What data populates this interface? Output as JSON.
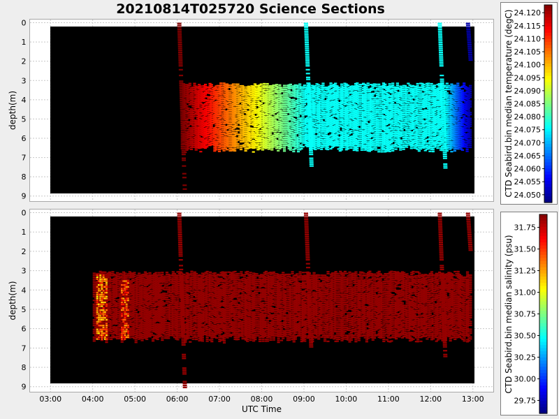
{
  "title": "20210814T025720 Science Sections",
  "colors": {
    "background": "#eeeeee",
    "plot_background": "#000000",
    "panel_background": "#ffffff",
    "grid": "#c8c8c8"
  },
  "chart_data": [
    {
      "type": "heatmap",
      "title": "20210814T025720 Science Sections",
      "xlabel": "",
      "ylabel": "depth(m)",
      "x_ticks": [
        "03:00",
        "04:00",
        "05:00",
        "06:00",
        "07:00",
        "08:00",
        "09:00",
        "10:00",
        "11:00",
        "12:00",
        "13:00"
      ],
      "y_ticks": [
        "0",
        "1",
        "2",
        "3",
        "4",
        "5",
        "6",
        "7",
        "8",
        "9"
      ],
      "xlim": [
        "02:30",
        "13:30"
      ],
      "ylim": [
        9.3,
        -0.2
      ],
      "grid": true,
      "colorbar": {
        "label": "CTD Seabird.bin median temperature (degC)",
        "ticks": [
          "24.120",
          "24.115",
          "24.110",
          "24.105",
          "24.100",
          "24.095",
          "24.090",
          "24.085",
          "24.080",
          "24.075",
          "24.070",
          "24.065",
          "24.060",
          "24.055",
          "24.050"
        ],
        "range": [
          24.047,
          24.123
        ],
        "colormap": "jet"
      },
      "features": [
        {
          "kind": "layer",
          "start": "06:05",
          "end": "12:55",
          "depth": [
            3.1,
            6.7
          ],
          "values": "24.123 at 06:05 decreasing to 24.076 by 09:00, constant 24.076 to 12:20, then 24.050 by 12:55"
        },
        {
          "kind": "descent",
          "start": "06:00",
          "end": "06:10",
          "depth": [
            0,
            8.8
          ],
          "value": 24.123
        },
        {
          "kind": "descent",
          "start": "09:00",
          "end": "09:10",
          "depth": [
            0,
            7.5
          ],
          "value": 24.076
        },
        {
          "kind": "descent",
          "start": "12:10",
          "end": "12:20",
          "depth": [
            0,
            7.5
          ],
          "value": 24.076
        },
        {
          "kind": "descent",
          "start": "12:50",
          "end": "12:55",
          "depth": [
            0,
            2.0
          ],
          "value": 24.05
        }
      ]
    },
    {
      "type": "heatmap",
      "title": "",
      "xlabel": "UTC Time",
      "ylabel": "depth(m)",
      "x_ticks": [
        "03:00",
        "04:00",
        "05:00",
        "06:00",
        "07:00",
        "08:00",
        "09:00",
        "10:00",
        "11:00",
        "12:00",
        "13:00"
      ],
      "y_ticks": [
        "0",
        "1",
        "2",
        "3",
        "4",
        "5",
        "6",
        "7",
        "8",
        "9"
      ],
      "xlim": [
        "02:30",
        "13:30"
      ],
      "ylim": [
        9.3,
        -0.2
      ],
      "grid": true,
      "colorbar": {
        "label": "CTD Seabird.bin median salinity (psu)",
        "ticks": [
          "31.75",
          "31.50",
          "31.25",
          "31.00",
          "30.75",
          "30.50",
          "30.25",
          "30.00",
          "29.75"
        ],
        "range": [
          29.6,
          31.9
        ],
        "colormap": "jet"
      },
      "features": [
        {
          "kind": "layer",
          "start": "04:00",
          "end": "12:55",
          "depth": [
            3.0,
            6.7
          ],
          "value": 31.85
        },
        {
          "kind": "patch",
          "start": "04:05",
          "end": "04:20",
          "depth": [
            3.2,
            6.5
          ],
          "value": 31.3
        },
        {
          "kind": "patch",
          "start": "04:40",
          "end": "04:50",
          "depth": [
            3.5,
            6.5
          ],
          "value": 31.45
        },
        {
          "kind": "descent",
          "start": "06:00",
          "end": "06:10",
          "depth": [
            0,
            9.0
          ],
          "value": 31.85
        },
        {
          "kind": "descent",
          "start": "09:00",
          "end": "09:10",
          "depth": [
            0,
            7.5
          ],
          "value": 31.85
        },
        {
          "kind": "descent",
          "start": "12:10",
          "end": "12:20",
          "depth": [
            0,
            7.5
          ],
          "value": 31.85
        },
        {
          "kind": "descent",
          "start": "12:50",
          "end": "12:55",
          "depth": [
            0,
            2.0
          ],
          "value": 31.85
        }
      ]
    }
  ]
}
